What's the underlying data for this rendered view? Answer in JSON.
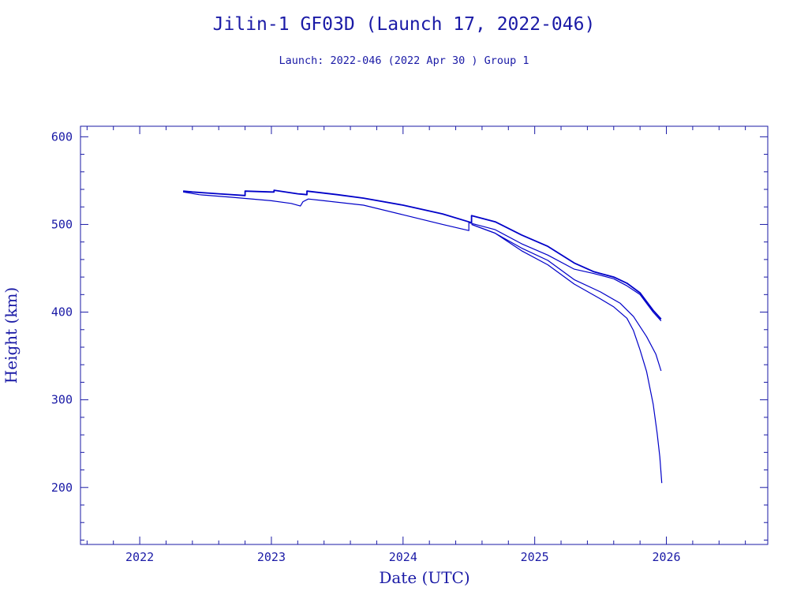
{
  "chart_data": {
    "type": "line",
    "title": "Jilin-1 GF03D (Launch 17, 2022-046)",
    "subtitle": "Launch: 2022-046  (2022 Apr 30 )  Group 1",
    "xlabel": "Date (UTC)",
    "ylabel": "Height (km)",
    "xlim": [
      2021.55,
      2026.77
    ],
    "ylim": [
      135,
      612
    ],
    "x_ticks": [
      "2022",
      "2023",
      "2024",
      "2025",
      "2026"
    ],
    "y_ticks": [
      "200",
      "300",
      "400",
      "500",
      "600"
    ],
    "grid": false,
    "line_color": "#0000c8",
    "series": [
      {
        "x": [
          2022.33,
          2022.4,
          2022.6,
          2022.8,
          2022.8,
          2023.0,
          2023.02,
          2023.02,
          2023.2,
          2023.27,
          2023.27,
          2023.5,
          2023.7,
          2024.0,
          2024.3,
          2024.52,
          2024.52,
          2024.7,
          2024.9,
          2025.1,
          2025.3,
          2025.45,
          2025.6,
          2025.7,
          2025.8,
          2025.9,
          2025.96
        ],
        "y": [
          538,
          537,
          535,
          533,
          538,
          537,
          537,
          539,
          535,
          534,
          538,
          534,
          530,
          522,
          512,
          502,
          510,
          503,
          488,
          475,
          456,
          446,
          440,
          433,
          422,
          402,
          392
        ]
      },
      {
        "x": [
          2022.33,
          2022.45,
          2022.7,
          2023.0,
          2023.15,
          2023.22,
          2023.24,
          2023.28,
          2023.4,
          2023.7,
          2024.0,
          2024.3,
          2024.5,
          2024.5,
          2024.7,
          2024.9,
          2025.1,
          2025.3,
          2025.45,
          2025.6,
          2025.7,
          2025.8,
          2025.9,
          2025.96
        ],
        "y": [
          537,
          534,
          531,
          527,
          524,
          521,
          526,
          529,
          527,
          522,
          511,
          500,
          493,
          502,
          494,
          478,
          465,
          449,
          444,
          438,
          430,
          420,
          400,
          390
        ]
      },
      {
        "x": [
          2024.52,
          2024.7,
          2024.9,
          2025.1,
          2025.3,
          2025.5,
          2025.65,
          2025.75,
          2025.85,
          2025.92,
          2025.96
        ],
        "y": [
          500,
          490,
          473,
          459,
          437,
          423,
          410,
          395,
          372,
          352,
          333
        ]
      },
      {
        "x": [
          2024.52,
          2024.7,
          2024.9,
          2025.1,
          2025.3,
          2025.5,
          2025.6,
          2025.7,
          2025.75,
          2025.8,
          2025.85,
          2025.9,
          2025.93,
          2025.95,
          2025.965
        ],
        "y": [
          500,
          490,
          470,
          454,
          432,
          415,
          406,
          393,
          379,
          357,
          332,
          295,
          262,
          235,
          205
        ]
      }
    ]
  }
}
